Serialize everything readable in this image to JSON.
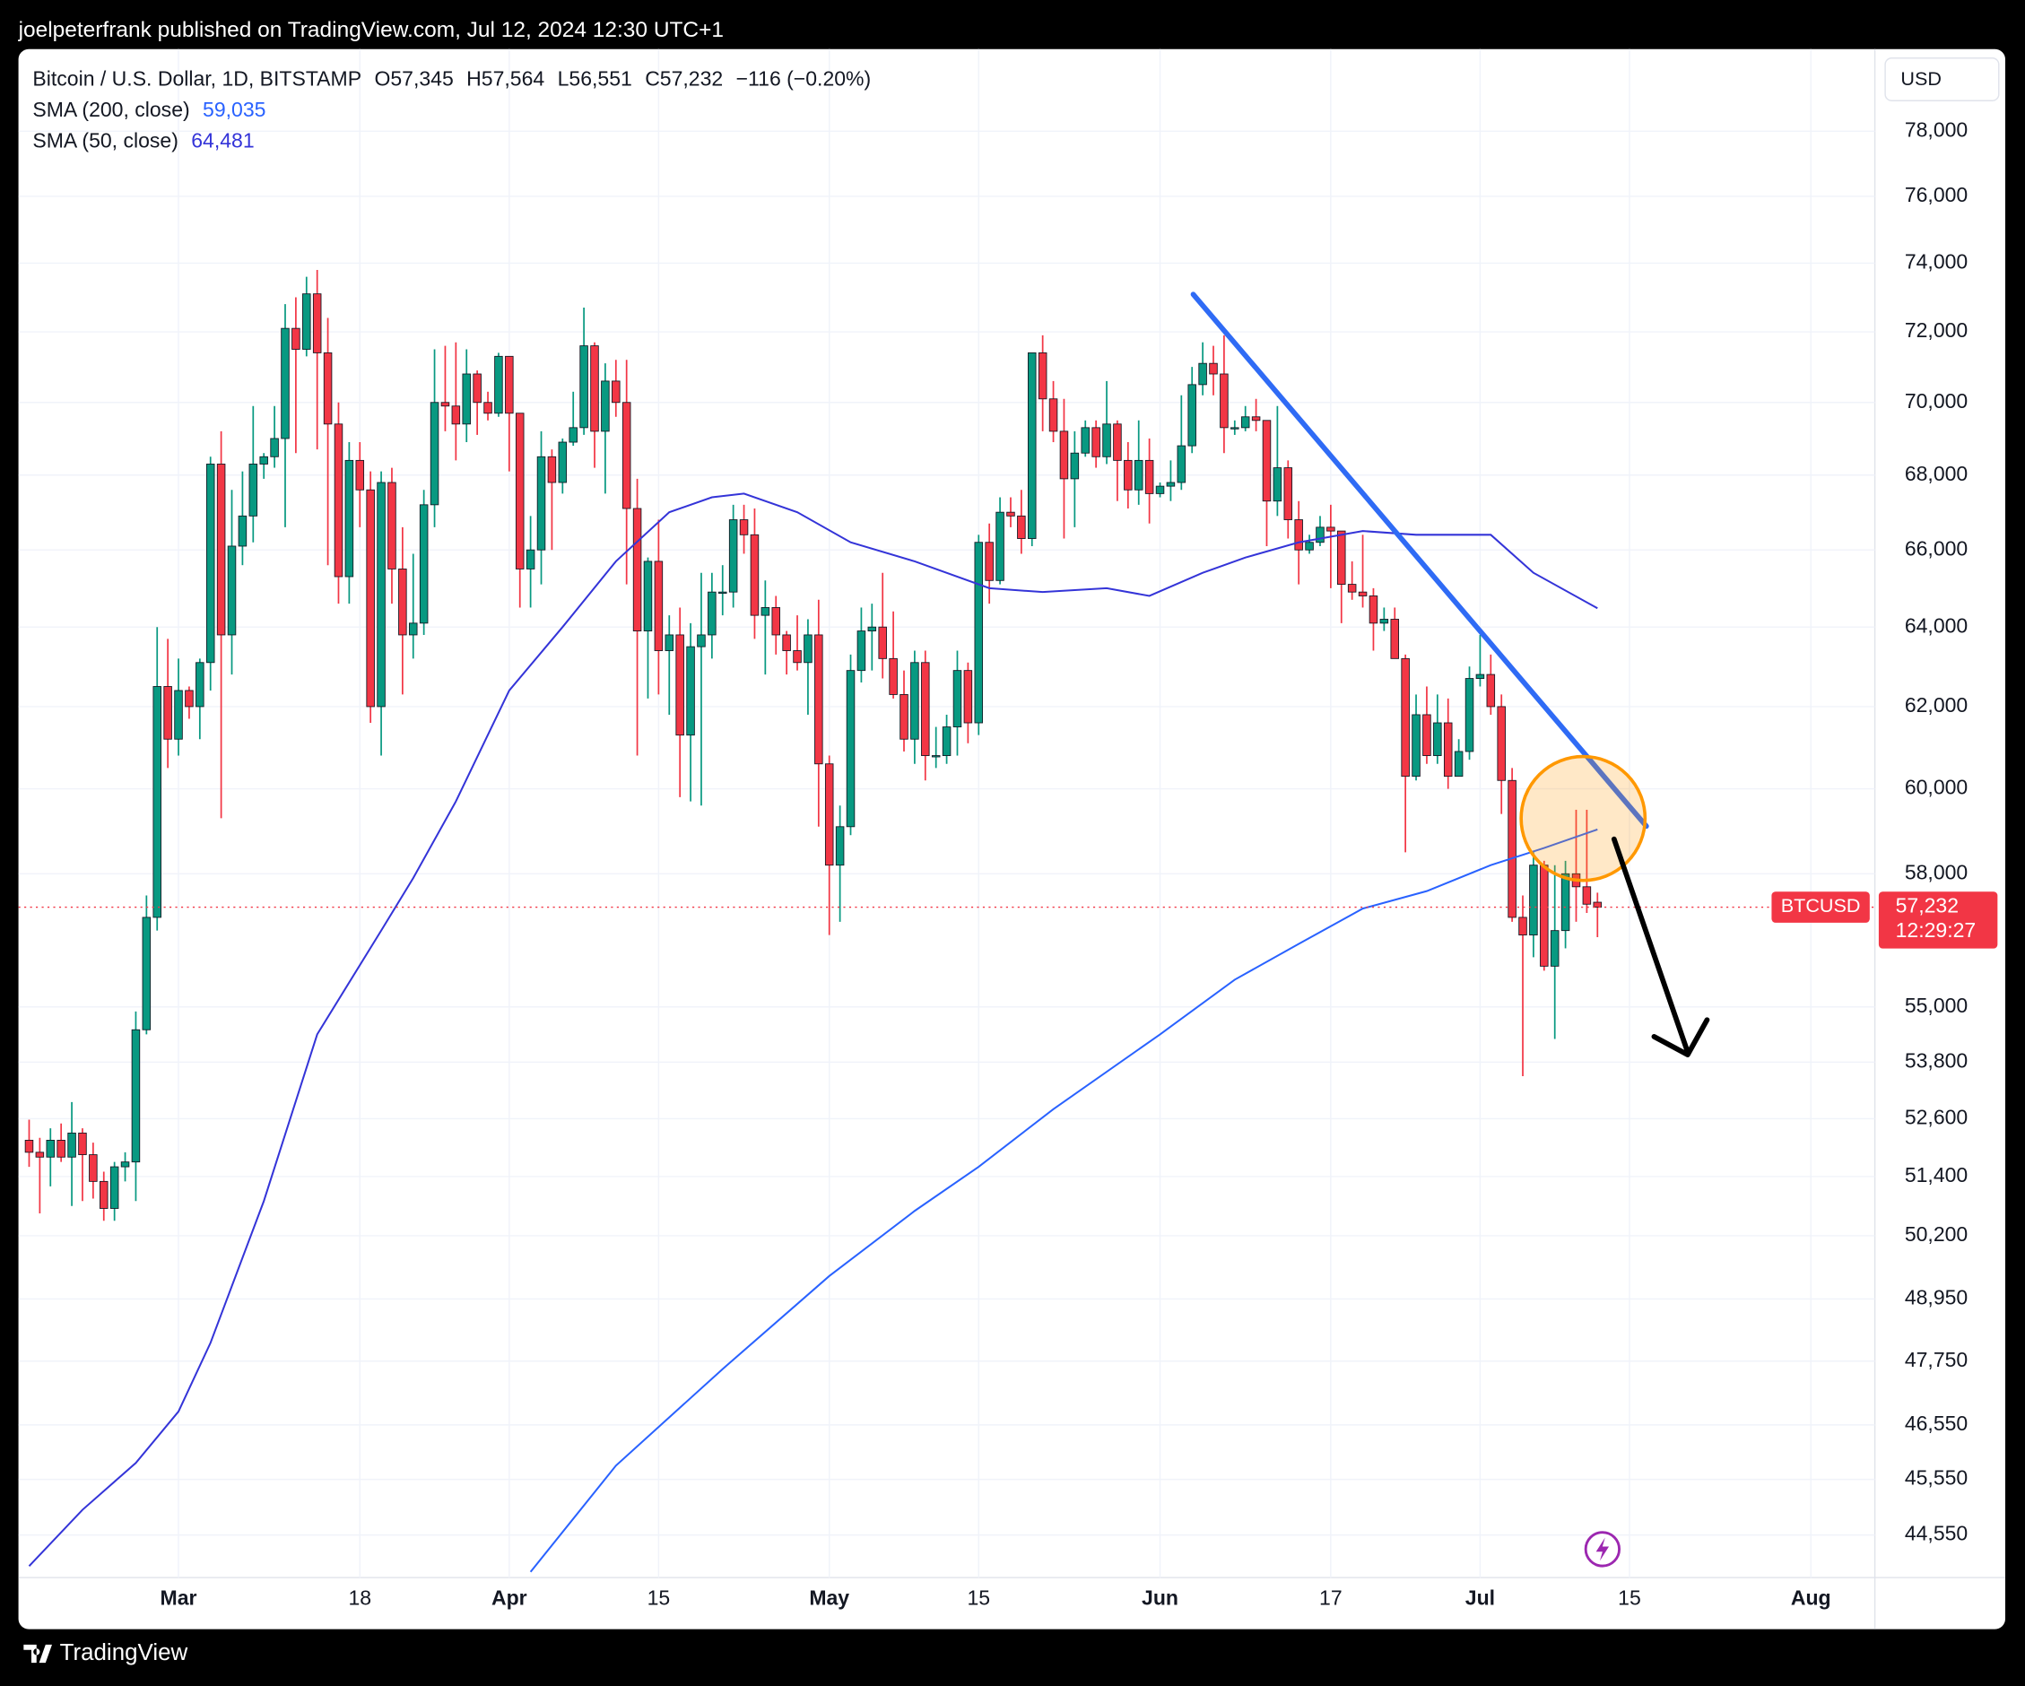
{
  "header": {
    "text": "joelpeterfrank published on TradingView.com, Jul 12, 2024 12:30 UTC+1"
  },
  "footer": {
    "brand": "TradingView"
  },
  "chart_data": {
    "type": "candlestick",
    "title": "Bitcoin / U.S. Dollar, 1D, BITSTAMP",
    "ohlc_labels": [
      "O57,345",
      "H57,564",
      "L56,551",
      "C57,232",
      "−116 (−0.20%)"
    ],
    "currency": "USD",
    "symbol": "BTCUSD",
    "last_value_label": "57,232",
    "countdown": "12:29:27",
    "up_color": "#089981",
    "down_color": "#f23645",
    "log_scale": true,
    "grid": true,
    "xlim": [
      "2024-02-15",
      "2024-08-07"
    ],
    "xticks": [
      {
        "value": "2024-03-01",
        "label": "Mar"
      },
      {
        "value": "2024-03-18",
        "label": "18"
      },
      {
        "value": "2024-04-01",
        "label": "Apr"
      },
      {
        "value": "2024-04-15",
        "label": "15"
      },
      {
        "value": "2024-05-01",
        "label": "May"
      },
      {
        "value": "2024-05-15",
        "label": "15"
      },
      {
        "value": "2024-06-01",
        "label": "Jun"
      },
      {
        "value": "2024-06-17",
        "label": "17"
      },
      {
        "value": "2024-07-01",
        "label": "Jul"
      },
      {
        "value": "2024-07-15",
        "label": "15"
      },
      {
        "value": "2024-08-01",
        "label": "Aug"
      }
    ],
    "ylim": [
      43800,
      80600
    ],
    "yticks": [
      {
        "value": 78000,
        "label": "78,000"
      },
      {
        "value": 76000,
        "label": "76,000"
      },
      {
        "value": 74000,
        "label": "74,000"
      },
      {
        "value": 72000,
        "label": "72,000"
      },
      {
        "value": 70000,
        "label": "70,000"
      },
      {
        "value": 68000,
        "label": "68,000"
      },
      {
        "value": 66000,
        "label": "66,000"
      },
      {
        "value": 64000,
        "label": "64,000"
      },
      {
        "value": 62000,
        "label": "62,000"
      },
      {
        "value": 60000,
        "label": "60,000"
      },
      {
        "value": 58000,
        "label": "58,000"
      },
      {
        "value": 55000,
        "label": "55,000"
      },
      {
        "value": 53800,
        "label": "53,800"
      },
      {
        "value": 52600,
        "label": "52,600"
      },
      {
        "value": 51400,
        "label": "51,400"
      },
      {
        "value": 50200,
        "label": "50,200"
      },
      {
        "value": 48950,
        "label": "48,950"
      },
      {
        "value": 47750,
        "label": "47,750"
      },
      {
        "value": 46550,
        "label": "46,550"
      },
      {
        "value": 45550,
        "label": "45,550"
      },
      {
        "value": 44550,
        "label": "44,550"
      }
    ],
    "x": [
      "2024-02-16",
      "2024-02-17",
      "2024-02-18",
      "2024-02-19",
      "2024-02-20",
      "2024-02-21",
      "2024-02-22",
      "2024-02-23",
      "2024-02-24",
      "2024-02-25",
      "2024-02-26",
      "2024-02-27",
      "2024-02-28",
      "2024-02-29",
      "2024-03-01",
      "2024-03-02",
      "2024-03-03",
      "2024-03-04",
      "2024-03-05",
      "2024-03-06",
      "2024-03-07",
      "2024-03-08",
      "2024-03-09",
      "2024-03-10",
      "2024-03-11",
      "2024-03-12",
      "2024-03-13",
      "2024-03-14",
      "2024-03-15",
      "2024-03-16",
      "2024-03-17",
      "2024-03-18",
      "2024-03-19",
      "2024-03-20",
      "2024-03-21",
      "2024-03-22",
      "2024-03-23",
      "2024-03-24",
      "2024-03-25",
      "2024-03-26",
      "2024-03-27",
      "2024-03-28",
      "2024-03-29",
      "2024-03-30",
      "2024-03-31",
      "2024-04-01",
      "2024-04-02",
      "2024-04-03",
      "2024-04-04",
      "2024-04-05",
      "2024-04-06",
      "2024-04-07",
      "2024-04-08",
      "2024-04-09",
      "2024-04-10",
      "2024-04-11",
      "2024-04-12",
      "2024-04-13",
      "2024-04-14",
      "2024-04-15",
      "2024-04-16",
      "2024-04-17",
      "2024-04-18",
      "2024-04-19",
      "2024-04-20",
      "2024-04-21",
      "2024-04-22",
      "2024-04-23",
      "2024-04-24",
      "2024-04-25",
      "2024-04-26",
      "2024-04-27",
      "2024-04-28",
      "2024-04-29",
      "2024-04-30",
      "2024-05-01",
      "2024-05-02",
      "2024-05-03",
      "2024-05-04",
      "2024-05-05",
      "2024-05-06",
      "2024-05-07",
      "2024-05-08",
      "2024-05-09",
      "2024-05-10",
      "2024-05-11",
      "2024-05-12",
      "2024-05-13",
      "2024-05-14",
      "2024-05-15",
      "2024-05-16",
      "2024-05-17",
      "2024-05-18",
      "2024-05-19",
      "2024-05-20",
      "2024-05-21",
      "2024-05-22",
      "2024-05-23",
      "2024-05-24",
      "2024-05-25",
      "2024-05-26",
      "2024-05-27",
      "2024-05-28",
      "2024-05-29",
      "2024-05-30",
      "2024-05-31",
      "2024-06-01",
      "2024-06-02",
      "2024-06-03",
      "2024-06-04",
      "2024-06-05",
      "2024-06-06",
      "2024-06-07",
      "2024-06-08",
      "2024-06-09",
      "2024-06-10",
      "2024-06-11",
      "2024-06-12",
      "2024-06-13",
      "2024-06-14",
      "2024-06-15",
      "2024-06-16",
      "2024-06-17",
      "2024-06-18",
      "2024-06-19",
      "2024-06-20",
      "2024-06-21",
      "2024-06-22",
      "2024-06-23",
      "2024-06-24",
      "2024-06-25",
      "2024-06-26",
      "2024-06-27",
      "2024-06-28",
      "2024-06-29",
      "2024-06-30",
      "2024-07-01",
      "2024-07-02",
      "2024-07-03",
      "2024-07-04",
      "2024-07-05",
      "2024-07-06",
      "2024-07-07",
      "2024-07-08",
      "2024-07-09",
      "2024-07-10",
      "2024-07-11",
      "2024-07-12"
    ],
    "ohlc": [
      [
        52150,
        52580,
        51600,
        51900
      ],
      [
        51900,
        52200,
        50650,
        51800
      ],
      [
        51800,
        52400,
        51200,
        52150
      ],
      [
        52150,
        52500,
        51700,
        51800
      ],
      [
        51800,
        52950,
        50800,
        52300
      ],
      [
        52300,
        52400,
        50900,
        51850
      ],
      [
        51850,
        52100,
        50950,
        51300
      ],
      [
        51300,
        51500,
        50500,
        50750
      ],
      [
        50750,
        51700,
        50500,
        51600
      ],
      [
        51600,
        51900,
        51300,
        51700
      ],
      [
        51700,
        54900,
        50900,
        54500
      ],
      [
        54500,
        57500,
        54400,
        57000
      ],
      [
        57000,
        64000,
        56700,
        62500
      ],
      [
        62500,
        63700,
        60500,
        61200
      ],
      [
        61200,
        63200,
        60800,
        62400
      ],
      [
        62400,
        62500,
        61700,
        62000
      ],
      [
        62000,
        63200,
        61200,
        63100
      ],
      [
        63100,
        68500,
        62400,
        68300
      ],
      [
        68300,
        69200,
        59300,
        63800
      ],
      [
        63800,
        67600,
        62800,
        66100
      ],
      [
        66100,
        68100,
        65600,
        66900
      ],
      [
        66900,
        69900,
        66200,
        68300
      ],
      [
        68300,
        68600,
        67900,
        68500
      ],
      [
        68500,
        69900,
        68200,
        69000
      ],
      [
        69000,
        72800,
        66600,
        72100
      ],
      [
        72100,
        73000,
        68600,
        71500
      ],
      [
        71500,
        73600,
        71300,
        73100
      ],
      [
        73100,
        73800,
        68700,
        71400
      ],
      [
        71400,
        72400,
        65600,
        69400
      ],
      [
        69400,
        70000,
        64600,
        65300
      ],
      [
        65300,
        68900,
        64600,
        68400
      ],
      [
        68400,
        68900,
        66600,
        67600
      ],
      [
        67600,
        68100,
        61600,
        62000
      ],
      [
        62000,
        68100,
        60800,
        67800
      ],
      [
        67800,
        68200,
        64600,
        65500
      ],
      [
        65500,
        66600,
        62300,
        63800
      ],
      [
        63800,
        65900,
        63200,
        64100
      ],
      [
        64100,
        67600,
        63800,
        67200
      ],
      [
        67200,
        71500,
        66600,
        70000
      ],
      [
        70000,
        71600,
        69200,
        69900
      ],
      [
        69900,
        71700,
        68400,
        69400
      ],
      [
        69400,
        71500,
        68900,
        70800
      ],
      [
        70800,
        70900,
        69100,
        70000
      ],
      [
        70000,
        70300,
        69500,
        69700
      ],
      [
        69700,
        71400,
        69600,
        71300
      ],
      [
        71300,
        71300,
        68100,
        69700
      ],
      [
        69700,
        69700,
        64500,
        65500
      ],
      [
        65500,
        66900,
        64500,
        66000
      ],
      [
        66000,
        69200,
        65100,
        68500
      ],
      [
        68500,
        68700,
        66000,
        67800
      ],
      [
        67800,
        69000,
        67500,
        68900
      ],
      [
        68900,
        70300,
        68800,
        69300
      ],
      [
        69300,
        72700,
        69100,
        71600
      ],
      [
        71600,
        71700,
        68200,
        69200
      ],
      [
        69200,
        71100,
        67500,
        70600
      ],
      [
        70600,
        71200,
        69600,
        70000
      ],
      [
        70000,
        71200,
        65100,
        67100
      ],
      [
        67100,
        67900,
        60800,
        63900
      ],
      [
        63900,
        65800,
        62200,
        65700
      ],
      [
        65700,
        66800,
        62300,
        63400
      ],
      [
        63400,
        64300,
        61800,
        63800
      ],
      [
        63800,
        64500,
        59800,
        61300
      ],
      [
        61300,
        64100,
        59700,
        63500
      ],
      [
        63500,
        65400,
        59600,
        63800
      ],
      [
        63800,
        65400,
        63200,
        64900
      ],
      [
        64900,
        65600,
        64300,
        64900
      ],
      [
        64900,
        67200,
        64500,
        66800
      ],
      [
        66800,
        67200,
        65900,
        66400
      ],
      [
        66400,
        67100,
        63700,
        64300
      ],
      [
        64300,
        65200,
        62800,
        64500
      ],
      [
        64500,
        64800,
        63300,
        63800
      ],
      [
        63800,
        63900,
        62800,
        63400
      ],
      [
        63400,
        64300,
        62900,
        63100
      ],
      [
        63100,
        64200,
        61800,
        63800
      ],
      [
        63800,
        64700,
        59100,
        60600
      ],
      [
        60600,
        60800,
        56600,
        58200
      ],
      [
        58200,
        59600,
        56900,
        59100
      ],
      [
        59100,
        63300,
        58900,
        62900
      ],
      [
        62900,
        64500,
        62600,
        63900
      ],
      [
        63900,
        64600,
        62900,
        64000
      ],
      [
        64000,
        65400,
        62700,
        63200
      ],
      [
        63200,
        64400,
        62200,
        62300
      ],
      [
        62300,
        62900,
        60900,
        61200
      ],
      [
        61200,
        63400,
        60600,
        63100
      ],
      [
        63100,
        63400,
        60200,
        60800
      ],
      [
        60800,
        61500,
        60500,
        60800
      ],
      [
        60800,
        61800,
        60600,
        61500
      ],
      [
        61500,
        63400,
        60800,
        62900
      ],
      [
        62900,
        63100,
        61100,
        61600
      ],
      [
        61600,
        66400,
        61300,
        66200
      ],
      [
        66200,
        66700,
        64600,
        65200
      ],
      [
        65200,
        67400,
        65100,
        67000
      ],
      [
        67000,
        67400,
        66600,
        66900
      ],
      [
        66900,
        67600,
        65900,
        66300
      ],
      [
        66300,
        71400,
        66100,
        71400
      ],
      [
        71400,
        71900,
        69200,
        70100
      ],
      [
        70100,
        70600,
        68900,
        69200
      ],
      [
        69200,
        70100,
        66300,
        67900
      ],
      [
        67900,
        69200,
        66600,
        68600
      ],
      [
        68600,
        69500,
        68500,
        69300
      ],
      [
        69300,
        69500,
        68200,
        68500
      ],
      [
        68500,
        70600,
        68300,
        69400
      ],
      [
        69400,
        69500,
        67300,
        68400
      ],
      [
        68400,
        68900,
        67100,
        67600
      ],
      [
        67600,
        69500,
        67200,
        68400
      ],
      [
        68400,
        69000,
        66700,
        67500
      ],
      [
        67500,
        67800,
        67400,
        67700
      ],
      [
        67700,
        68400,
        67300,
        67800
      ],
      [
        67800,
        70200,
        67600,
        68800
      ],
      [
        68800,
        71000,
        68600,
        70500
      ],
      [
        70500,
        71700,
        70200,
        71100
      ],
      [
        71100,
        71600,
        70200,
        70800
      ],
      [
        70800,
        71900,
        68600,
        69300
      ],
      [
        69300,
        69500,
        69100,
        69300
      ],
      [
        69300,
        69900,
        69200,
        69600
      ],
      [
        69600,
        70100,
        69200,
        69500
      ],
      [
        69500,
        69500,
        66100,
        67300
      ],
      [
        67300,
        69900,
        66900,
        68200
      ],
      [
        68200,
        68400,
        66300,
        66800
      ],
      [
        66800,
        67300,
        65100,
        66000
      ],
      [
        66000,
        66400,
        65900,
        66200
      ],
      [
        66200,
        66900,
        66100,
        66600
      ],
      [
        66600,
        67200,
        65000,
        66500
      ],
      [
        66500,
        66500,
        64100,
        65100
      ],
      [
        65100,
        65700,
        64700,
        64900
      ],
      [
        64900,
        66400,
        64500,
        64800
      ],
      [
        64800,
        65000,
        63400,
        64100
      ],
      [
        64100,
        64500,
        63900,
        64200
      ],
      [
        64200,
        64500,
        63200,
        63200
      ],
      [
        63200,
        63300,
        58500,
        60300
      ],
      [
        60300,
        62300,
        60200,
        61800
      ],
      [
        61800,
        62500,
        60600,
        60800
      ],
      [
        60800,
        62300,
        60600,
        61600
      ],
      [
        61600,
        62200,
        60000,
        60300
      ],
      [
        60300,
        61200,
        60300,
        60900
      ],
      [
        60900,
        63000,
        60700,
        62700
      ],
      [
        62700,
        63800,
        62500,
        62800
      ],
      [
        62800,
        63300,
        61800,
        62000
      ],
      [
        62000,
        62300,
        59400,
        60200
      ],
      [
        60200,
        60500,
        56900,
        57000
      ],
      [
        57000,
        57500,
        53500,
        56600
      ],
      [
        56600,
        58500,
        56100,
        58200
      ],
      [
        58200,
        58300,
        55800,
        55900
      ],
      [
        55900,
        58200,
        54300,
        56700
      ],
      [
        56700,
        58300,
        56300,
        58000
      ],
      [
        58000,
        59500,
        56900,
        57700
      ],
      [
        57700,
        59500,
        57100,
        57300
      ],
      [
        57345,
        57564,
        56551,
        57232
      ]
    ],
    "series": [
      {
        "name": "SMA (200, close)",
        "color": "#2962ff",
        "last_value_label": "59,035",
        "x": [
          "2024-04-03",
          "2024-04-11",
          "2024-04-21",
          "2024-05-01",
          "2024-05-09",
          "2024-05-15",
          "2024-05-22",
          "2024-06-01",
          "2024-06-08",
          "2024-06-14",
          "2024-06-20",
          "2024-06-26",
          "2024-07-02",
          "2024-07-07",
          "2024-07-12"
        ],
        "values": [
          43900,
          45800,
          47600,
          49400,
          50700,
          51600,
          52800,
          54400,
          55600,
          56400,
          57200,
          57600,
          58200,
          58600,
          59035
        ]
      },
      {
        "name": "SMA (50, close)",
        "color": "#3434d8",
        "last_value_label": "64,481",
        "x": [
          "2024-02-16",
          "2024-02-21",
          "2024-02-26",
          "2024-03-01",
          "2024-03-04",
          "2024-03-09",
          "2024-03-14",
          "2024-03-20",
          "2024-03-23",
          "2024-03-27",
          "2024-04-01",
          "2024-04-06",
          "2024-04-11",
          "2024-04-16",
          "2024-04-20",
          "2024-04-23",
          "2024-04-28",
          "2024-05-03",
          "2024-05-09",
          "2024-05-16",
          "2024-05-21",
          "2024-05-27",
          "2024-05-31",
          "2024-06-05",
          "2024-06-09",
          "2024-06-14",
          "2024-06-20",
          "2024-06-25",
          "2024-07-02",
          "2024-07-06",
          "2024-07-12"
        ],
        "values": [
          44000,
          45000,
          45850,
          46800,
          48100,
          50900,
          54400,
          56700,
          57900,
          59700,
          62400,
          64000,
          65700,
          67000,
          67400,
          67500,
          67000,
          66200,
          65700,
          65000,
          64900,
          65000,
          64800,
          65400,
          65800,
          66200,
          66500,
          66400,
          66400,
          65400,
          64481
        ]
      }
    ]
  }
}
